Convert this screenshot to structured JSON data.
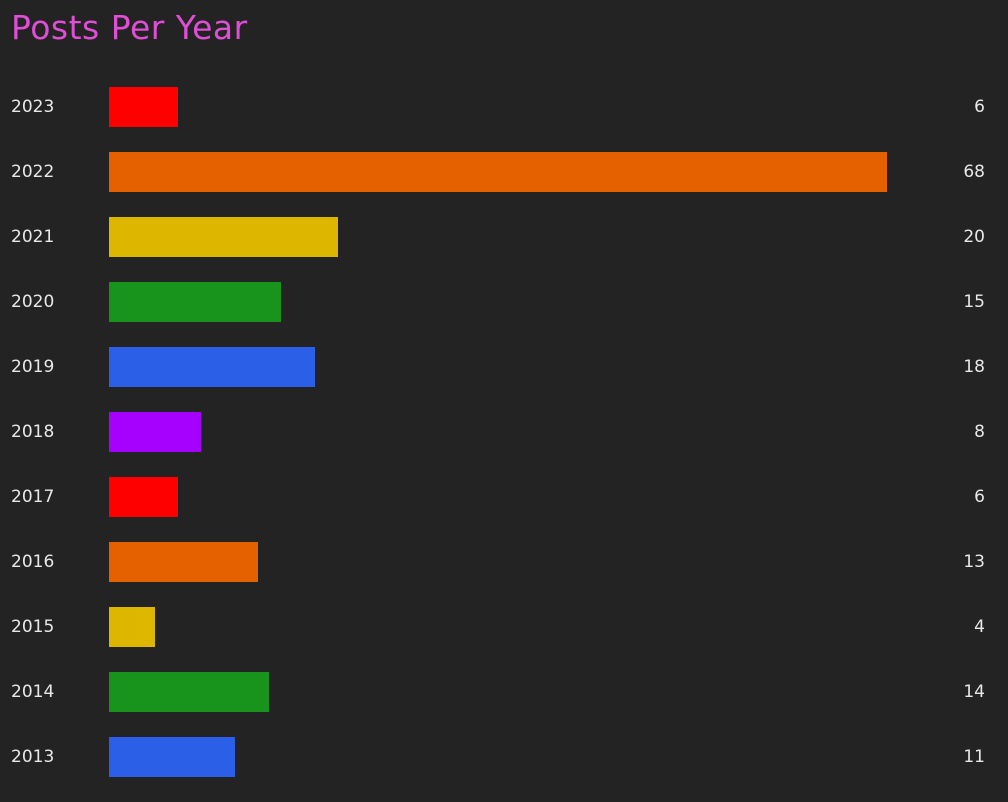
{
  "chart_data": {
    "type": "bar",
    "orientation": "horizontal",
    "title": "Posts Per Year",
    "categories": [
      "2023",
      "2022",
      "2021",
      "2020",
      "2019",
      "2018",
      "2017",
      "2016",
      "2015",
      "2014",
      "2013"
    ],
    "values": [
      6,
      68,
      20,
      15,
      18,
      8,
      6,
      13,
      4,
      14,
      11
    ],
    "colors": [
      "#ff0000",
      "#e56100",
      "#ddb600",
      "#18931c",
      "#2b5fe8",
      "#a600ff",
      "#ff0000",
      "#e56100",
      "#ddb600",
      "#18931c",
      "#2b5fe8"
    ],
    "xlim": [
      0,
      68
    ],
    "grid": false,
    "legend": "none"
  }
}
